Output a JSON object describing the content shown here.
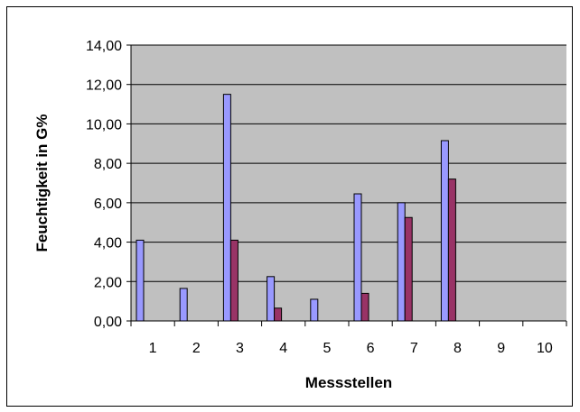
{
  "chart_data": {
    "type": "bar",
    "title": "",
    "xlabel": "Messstellen",
    "ylabel": "Feuchtigkeit in G%",
    "categories": [
      "1",
      "2",
      "3",
      "4",
      "5",
      "6",
      "7",
      "8",
      "9",
      "10"
    ],
    "series": [
      {
        "color": "#9999ff",
        "values": [
          4.1,
          1.65,
          11.5,
          2.25,
          1.1,
          6.45,
          6.0,
          9.15,
          null,
          null
        ]
      },
      {
        "color": "#993366",
        "values": [
          null,
          null,
          4.1,
          0.65,
          null,
          1.4,
          5.25,
          7.2,
          null,
          null
        ]
      }
    ],
    "ylim": [
      0,
      14
    ],
    "yticks": [
      "0,00",
      "2,00",
      "4,00",
      "6,00",
      "8,00",
      "10,00",
      "12,00",
      "14,00"
    ],
    "grid": true,
    "plot_background": "#c0c0c0",
    "legend": "none"
  }
}
